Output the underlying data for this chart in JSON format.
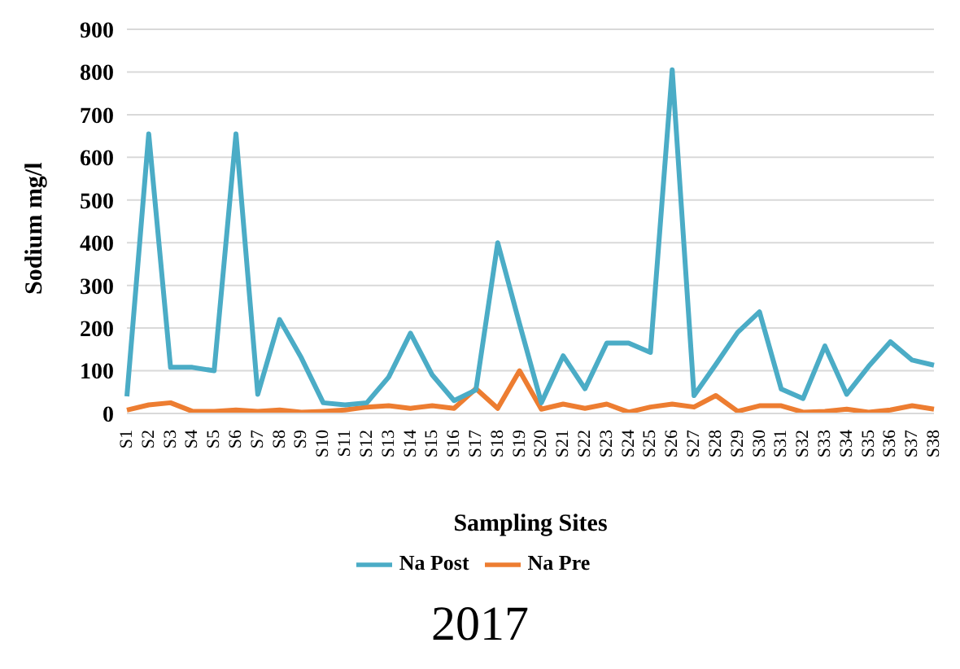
{
  "chart_data": {
    "type": "line",
    "xlabel": "Sampling Sites",
    "ylabel": "Sodium mg/l",
    "categories": [
      "S1",
      "S2",
      "S3",
      "S4",
      "S5",
      "S6",
      "S7",
      "S8",
      "S9",
      "S10",
      "S11",
      "S12",
      "S13",
      "S14",
      "S15",
      "S16",
      "S17",
      "S18",
      "S19",
      "S20",
      "S21",
      "S22",
      "S23",
      "S24",
      "S25",
      "S26",
      "S27",
      "S28",
      "S29",
      "S30",
      "S31",
      "S32",
      "S33",
      "S34",
      "S35",
      "S36",
      "S37",
      "S38"
    ],
    "series": [
      {
        "name": "Na Pre",
        "color": "#ed7d31",
        "values": [
          8,
          20,
          25,
          5,
          5,
          8,
          5,
          8,
          3,
          5,
          8,
          15,
          18,
          12,
          18,
          12,
          58,
          12,
          100,
          10,
          22,
          12,
          22,
          3,
          15,
          22,
          15,
          42,
          5,
          18,
          18,
          3,
          5,
          10,
          3,
          8,
          18,
          10
        ]
      },
      {
        "name": "Na Post",
        "color": "#4bacc6",
        "values": [
          40,
          655,
          108,
          108,
          100,
          655,
          45,
          220,
          130,
          25,
          20,
          25,
          85,
          188,
          90,
          30,
          55,
          400,
          210,
          25,
          135,
          58,
          165,
          165,
          143,
          805,
          42,
          115,
          190,
          238,
          57,
          35,
          158,
          45,
          110,
          168,
          125,
          113
        ]
      }
    ],
    "ylim": [
      0,
      900
    ],
    "yticks": [
      0,
      100,
      200,
      300,
      400,
      500,
      600,
      700,
      800,
      900
    ],
    "grid": "y",
    "legend": "bottom",
    "marker": "none",
    "line_style": "solid",
    "annotations": [
      "2017"
    ]
  }
}
